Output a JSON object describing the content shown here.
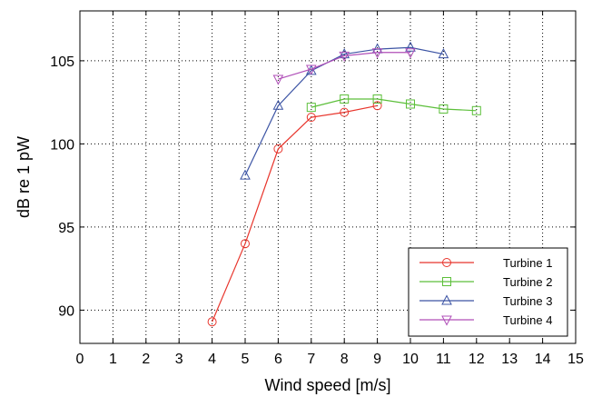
{
  "chart_data": {
    "type": "line",
    "xlabel": "Wind speed [m/s]",
    "ylabel": "dB re 1 pW",
    "xlim": [
      0,
      15
    ],
    "ylim": [
      88,
      108
    ],
    "xticks": [
      0,
      1,
      2,
      3,
      4,
      5,
      6,
      7,
      8,
      9,
      10,
      11,
      12,
      13,
      14,
      15
    ],
    "yticks": [
      90,
      95,
      100,
      105
    ],
    "grid": true,
    "legend_position": "bottom-right",
    "series": [
      {
        "name": "Turbine 1",
        "color": "#e8352c",
        "marker": "circle",
        "x": [
          4,
          5,
          6,
          7,
          8,
          9
        ],
        "y": [
          89.3,
          94.0,
          99.7,
          101.6,
          101.9,
          102.3
        ]
      },
      {
        "name": "Turbine 2",
        "color": "#5cbf3a",
        "marker": "square",
        "x": [
          7,
          8,
          9,
          10,
          11,
          12
        ],
        "y": [
          102.2,
          102.7,
          102.7,
          102.4,
          102.1,
          102.0
        ]
      },
      {
        "name": "Turbine 3",
        "color": "#3c54a4",
        "marker": "triangle-up",
        "x": [
          5,
          6,
          7,
          8,
          9,
          10,
          11
        ],
        "y": [
          98.1,
          102.3,
          104.4,
          105.4,
          105.7,
          105.8,
          105.4
        ]
      },
      {
        "name": "Turbine 4",
        "color": "#b04fb8",
        "marker": "triangle-down",
        "x": [
          6,
          7,
          8,
          9,
          10
        ],
        "y": [
          103.9,
          104.5,
          105.3,
          105.5,
          105.5
        ]
      }
    ]
  }
}
